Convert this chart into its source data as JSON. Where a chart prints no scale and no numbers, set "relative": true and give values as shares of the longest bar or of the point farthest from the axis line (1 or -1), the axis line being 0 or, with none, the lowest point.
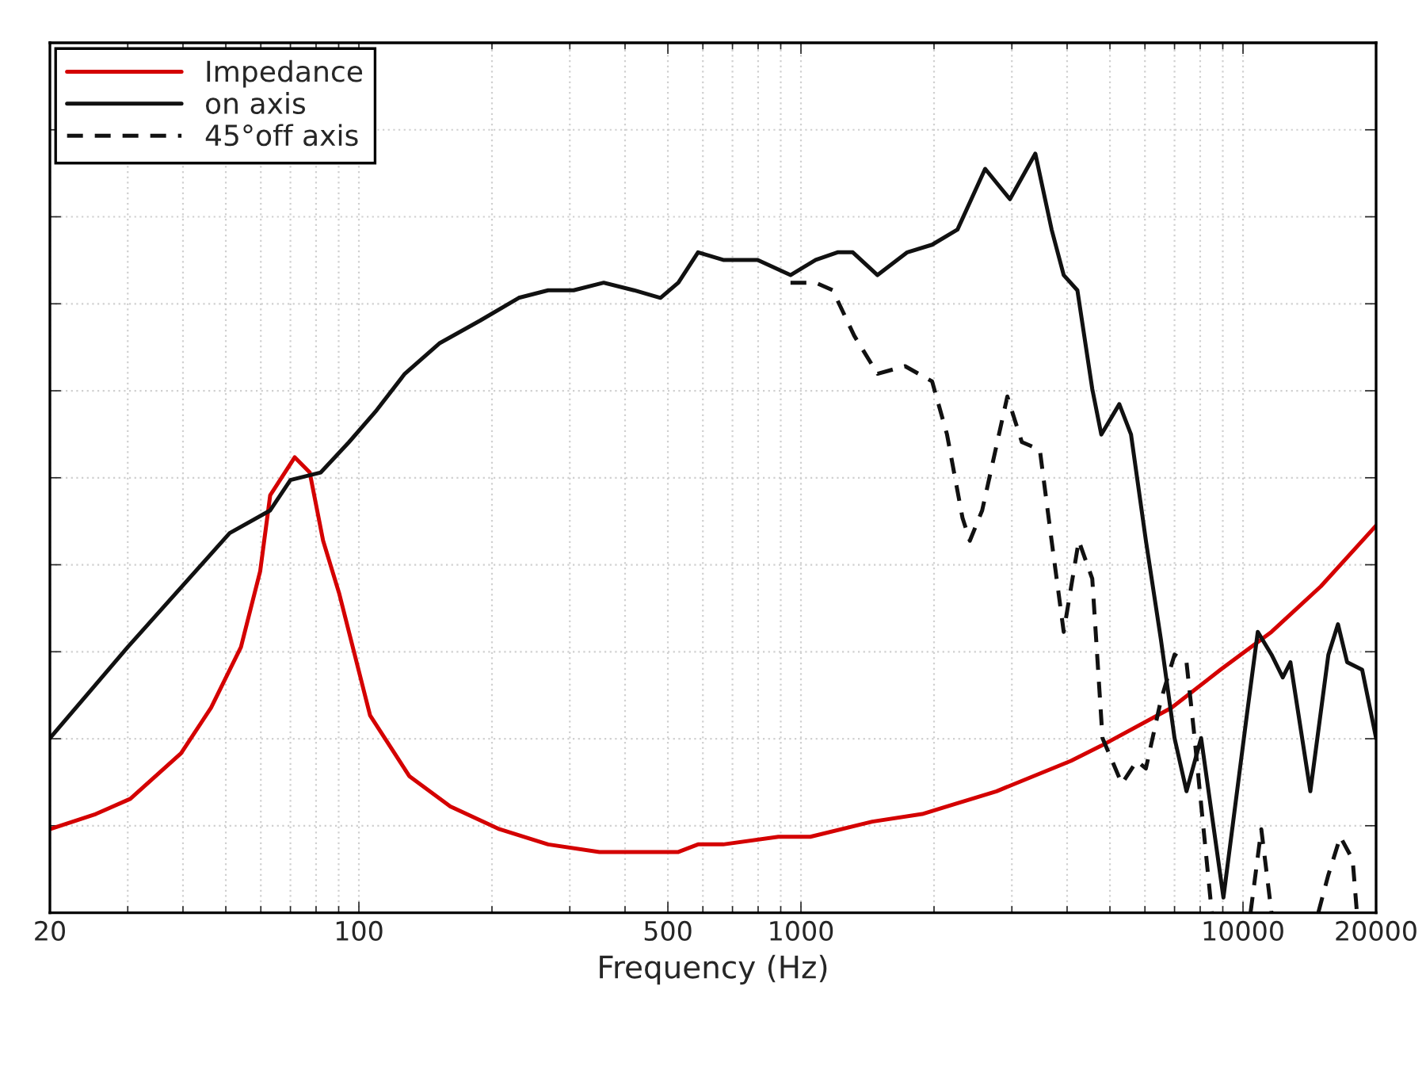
{
  "chart_data": {
    "type": "line",
    "relative": true,
    "xlabel": "Frequency (Hz)",
    "log": "x",
    "xlim": [
      20,
      20000
    ],
    "xticks": [
      20,
      100,
      500,
      1000,
      10000,
      20000
    ],
    "grid": true,
    "legend": "top left",
    "tick_labels": "x",
    "series": [
      {
        "name": "Impedance",
        "color": "#d40000",
        "line_style": "solid",
        "x": [
          20,
          25.4,
          30.4,
          39.6,
          46.3,
          54.1,
          59.8,
          63,
          71.6,
          77.4,
          83,
          90.3,
          106,
          130,
          161,
          208,
          268,
          350,
          452,
          528,
          585,
          667,
          889,
          1050,
          1450,
          1880,
          2770,
          4080,
          4780,
          6890,
          8890,
          11600,
          15000,
          20000
        ],
        "values": [
          0.11,
          0.13,
          0.15,
          0.21,
          0.27,
          0.35,
          0.45,
          0.55,
          0.6,
          0.58,
          0.49,
          0.42,
          0.26,
          0.18,
          0.14,
          0.11,
          0.09,
          0.08,
          0.08,
          0.08,
          0.09,
          0.09,
          0.1,
          0.1,
          0.12,
          0.13,
          0.16,
          0.2,
          0.22,
          0.27,
          0.32,
          0.37,
          0.43,
          0.51
        ]
      },
      {
        "name": "on axis",
        "color": "#111111",
        "line_style": "solid",
        "x": [
          20,
          30,
          51,
          63,
          70,
          82,
          95,
          109,
          127,
          152,
          188,
          230,
          268,
          306,
          358,
          419,
          481,
          528,
          585,
          667,
          798,
          947,
          1080,
          1210,
          1310,
          1490,
          1740,
          1980,
          2260,
          2610,
          2970,
          3390,
          3690,
          3930,
          4220,
          4560,
          4780,
          5250,
          5580,
          6030,
          6520,
          7000,
          7450,
          8040,
          9030,
          10200,
          10800,
          11600,
          12300,
          12800,
          14200,
          15600,
          16400,
          17200,
          18600,
          20000
        ],
        "values": [
          0.23,
          0.35,
          0.5,
          0.53,
          0.57,
          0.58,
          0.62,
          0.66,
          0.71,
          0.75,
          0.78,
          0.81,
          0.82,
          0.82,
          0.83,
          0.82,
          0.81,
          0.83,
          0.87,
          0.86,
          0.86,
          0.84,
          0.86,
          0.87,
          0.87,
          0.84,
          0.87,
          0.88,
          0.9,
          0.98,
          0.94,
          1.0,
          0.9,
          0.84,
          0.82,
          0.69,
          0.63,
          0.67,
          0.63,
          0.49,
          0.36,
          0.23,
          0.16,
          0.23,
          0.02,
          0.26,
          0.37,
          0.34,
          0.31,
          0.33,
          0.16,
          0.34,
          0.38,
          0.33,
          0.32,
          0.23
        ]
      },
      {
        "name": "45°off axis",
        "color": "#111111",
        "line_style": "dashed",
        "x": [
          947,
          1080,
          1180,
          1320,
          1490,
          1720,
          1980,
          2140,
          2320,
          2410,
          2570,
          2930,
          3160,
          3470,
          3690,
          3930,
          4250,
          4560,
          4810,
          5320,
          5750,
          6030,
          6520,
          7000,
          7450,
          7740,
          8500,
          9400,
          10400,
          11000,
          11600,
          13000,
          14800,
          15600,
          16600,
          17700,
          18100
        ],
        "values": [
          0.83,
          0.83,
          0.82,
          0.76,
          0.71,
          0.72,
          0.7,
          0.63,
          0.52,
          0.49,
          0.53,
          0.68,
          0.62,
          0.61,
          0.49,
          0.37,
          0.49,
          0.44,
          0.23,
          0.17,
          0.2,
          0.19,
          0.28,
          0.34,
          0.33,
          0.24,
          0,
          null,
          0,
          0.11,
          0,
          null,
          0,
          0.05,
          0.1,
          0.07,
          0
        ]
      }
    ]
  }
}
